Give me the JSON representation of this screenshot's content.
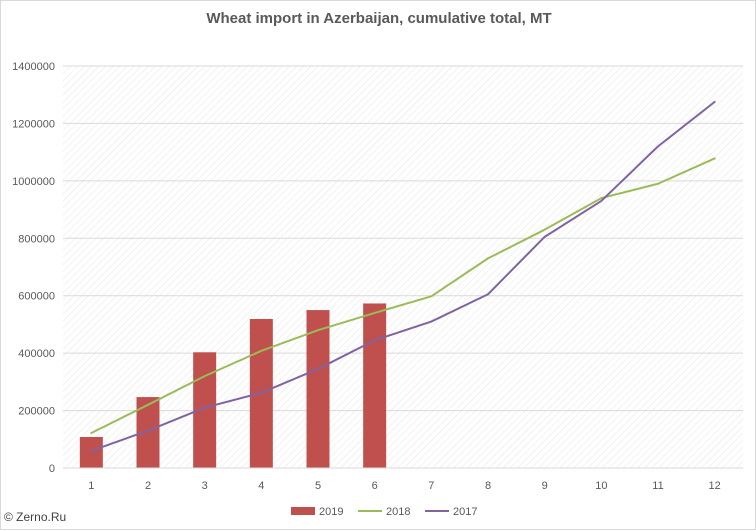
{
  "chart_data": {
    "type": "bar",
    "title": "Wheat import in Azerbaijan, cumulative total, MT",
    "xlabel": "",
    "ylabel": "",
    "categories": [
      "1",
      "2",
      "3",
      "4",
      "5",
      "6",
      "7",
      "8",
      "9",
      "10",
      "11",
      "12"
    ],
    "ylim": [
      0,
      1400000
    ],
    "yticks": [
      0,
      200000,
      400000,
      600000,
      800000,
      1000000,
      1200000,
      1400000
    ],
    "grid": true,
    "legend_position": "bottom",
    "series": [
      {
        "name": "2019",
        "kind": "bar",
        "color": "#c0504d",
        "values": [
          108000,
          247000,
          403000,
          519000,
          550000,
          573000,
          null,
          null,
          null,
          null,
          null,
          null
        ]
      },
      {
        "name": "2018",
        "kind": "line",
        "color": "#9bbb59",
        "values": [
          122000,
          220000,
          320000,
          408000,
          480000,
          540000,
          598000,
          730000,
          830000,
          940000,
          990000,
          1078000
        ]
      },
      {
        "name": "2017",
        "kind": "line",
        "color": "#8064a2",
        "values": [
          60000,
          130000,
          210000,
          262000,
          345000,
          445000,
          510000,
          605000,
          805000,
          930000,
          1120000,
          1275000
        ]
      }
    ]
  },
  "footer": {
    "copyright": "© Zerno.Ru"
  }
}
